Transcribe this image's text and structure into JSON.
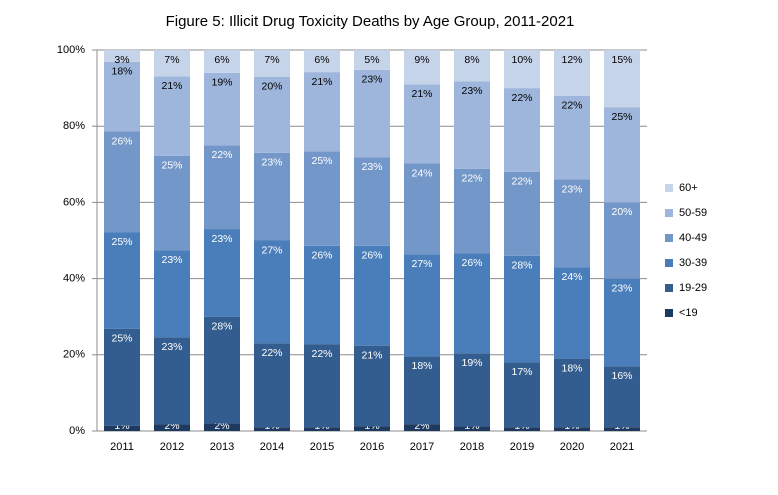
{
  "chart_data": {
    "type": "stacked_bar",
    "title": "Figure 5: Illicit Drug Toxicity Deaths by Age Group, 2011-2021",
    "categories": [
      "2011",
      "2012",
      "2013",
      "2014",
      "2015",
      "2016",
      "2017",
      "2018",
      "2019",
      "2020",
      "2021"
    ],
    "series": [
      {
        "name": "<19",
        "color": "#1f3a60",
        "values": [
          1.4,
          1.8,
          2,
          1,
          1.0,
          1.2,
          1.8,
          1.2,
          1,
          1,
          1
        ],
        "value_labels": [
          "1%",
          "2%",
          "2%",
          "1%",
          "1%",
          "1%",
          "2%",
          "1%",
          "1%",
          "1%",
          "1%"
        ]
      },
      {
        "name": "19-29",
        "color": "#335d8e",
        "values": [
          25.4,
          22.8,
          28,
          22,
          21.8,
          21.2,
          17.8,
          19.2,
          17,
          18,
          16
        ],
        "value_labels": [
          "25%",
          "23%",
          "28%",
          "22%",
          "22%",
          "21%",
          "18%",
          "19%",
          "17%",
          "18%",
          "16%"
        ]
      },
      {
        "name": "30-39",
        "color": "#4a7ebb",
        "values": [
          25.4,
          22.8,
          23,
          27,
          25.8,
          26.2,
          26.8,
          26.2,
          28,
          24,
          23
        ],
        "value_labels": [
          "25%",
          "23%",
          "23%",
          "27%",
          "26%",
          "26%",
          "27%",
          "26%",
          "28%",
          "24%",
          "23%"
        ]
      },
      {
        "name": "40-49",
        "color": "#7397c9",
        "values": [
          26.4,
          24.8,
          22,
          23,
          24.8,
          23.2,
          23.8,
          22.2,
          22,
          23,
          20
        ],
        "value_labels": [
          "26%",
          "25%",
          "22%",
          "23%",
          "25%",
          "23%",
          "24%",
          "22%",
          "22%",
          "23%",
          "20%"
        ]
      },
      {
        "name": "50-59",
        "color": "#9fb6dc",
        "values": [
          18.3,
          20.9,
          19,
          20,
          20.8,
          23.0,
          20.8,
          23.0,
          22,
          22,
          25
        ],
        "value_labels": [
          "18%",
          "21%",
          "19%",
          "20%",
          "21%",
          "23%",
          "21%",
          "23%",
          "22%",
          "22%",
          "25%"
        ]
      },
      {
        "name": "60+",
        "color": "#c6d4ea",
        "values": [
          3.1,
          6.9,
          6,
          7,
          5.8,
          5.2,
          9.0,
          8.2,
          10,
          12,
          15
        ],
        "value_labels": [
          "3%",
          "7%",
          "6%",
          "7%",
          "6%",
          "5%",
          "9%",
          "8%",
          "10%",
          "12%",
          "15%"
        ]
      }
    ],
    "ylim": [
      0,
      100
    ],
    "yticks": [
      {
        "value": 0,
        "label": "0%"
      },
      {
        "value": 20,
        "label": "20%"
      },
      {
        "value": 40,
        "label": "40%"
      },
      {
        "value": 60,
        "label": "60%"
      },
      {
        "value": 80,
        "label": "80%"
      },
      {
        "value": 100,
        "label": "100%"
      }
    ],
    "grid": true,
    "legend": "right"
  }
}
